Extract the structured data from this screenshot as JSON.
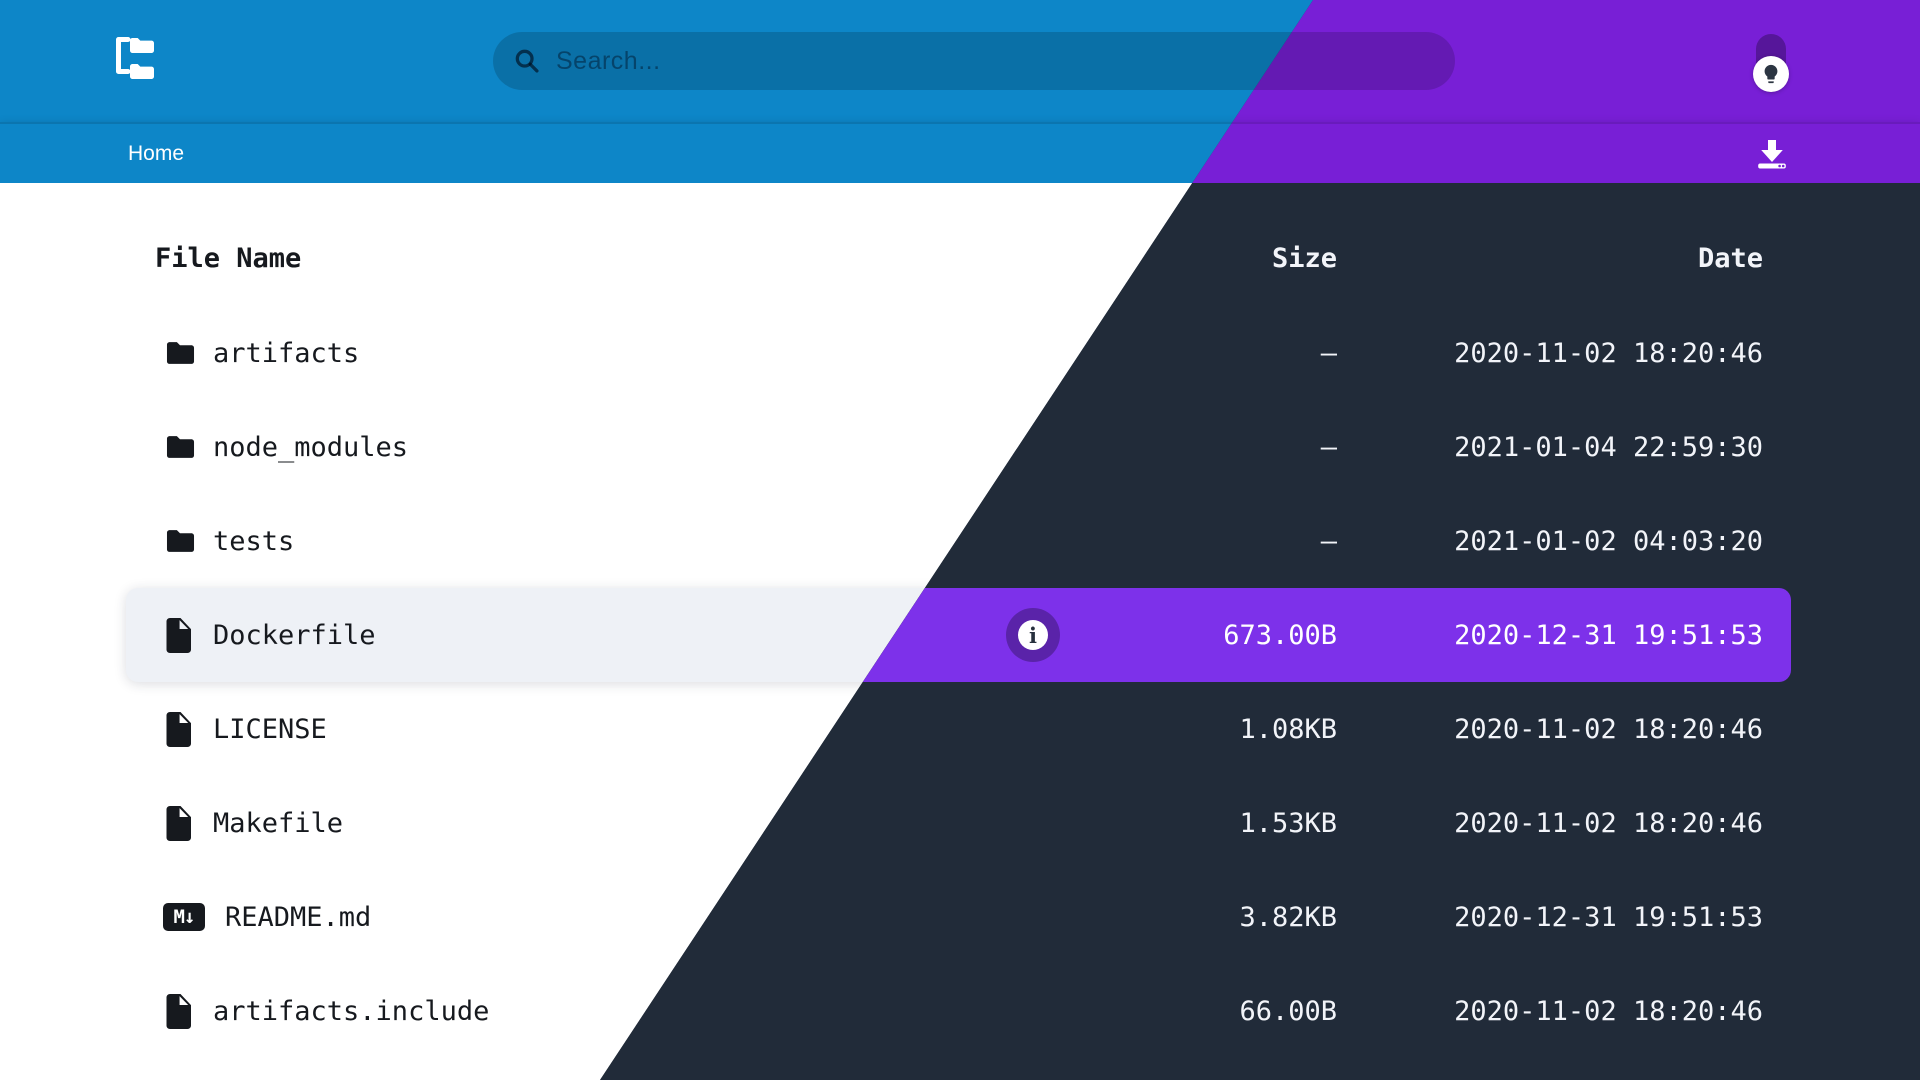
{
  "header": {
    "search_placeholder": "Search..."
  },
  "breadcrumb": {
    "current": "Home"
  },
  "table": {
    "headers": [
      "File Name",
      "Size",
      "Date"
    ],
    "rows": [
      {
        "name": "artifacts",
        "type": "folder",
        "size": "—",
        "date": "2020-11-02 18:20:46",
        "selected": false
      },
      {
        "name": "node_modules",
        "type": "folder",
        "size": "—",
        "date": "2021-01-04 22:59:30",
        "selected": false
      },
      {
        "name": "tests",
        "type": "folder",
        "size": "—",
        "date": "2021-01-02 04:03:20",
        "selected": false
      },
      {
        "name": "Dockerfile",
        "type": "file",
        "size": "673.00B",
        "date": "2020-12-31 19:51:53",
        "selected": true
      },
      {
        "name": "LICENSE",
        "type": "file",
        "size": "1.08KB",
        "date": "2020-11-02 18:20:46",
        "selected": false
      },
      {
        "name": "Makefile",
        "type": "file",
        "size": "1.53KB",
        "date": "2020-11-02 18:20:46",
        "selected": false
      },
      {
        "name": "README.md",
        "type": "markdown",
        "size": "3.82KB",
        "date": "2020-12-31 19:51:53",
        "selected": false
      },
      {
        "name": "artifacts.include",
        "type": "file",
        "size": "66.00B",
        "date": "2020-11-02 18:20:46",
        "selected": false
      }
    ]
  },
  "icons": {
    "markdown_glyph": "M↓",
    "info_glyph": "i"
  },
  "themes": {
    "light": {
      "chrome": "#0d86c8",
      "background": "#ffffff",
      "text": "#16191e",
      "selected_row": "#eef1f6"
    },
    "dark": {
      "chrome": "#781fd6",
      "background": "#212b39",
      "text": "#f2f4f9",
      "selected_row": "#7d31ea"
    }
  }
}
